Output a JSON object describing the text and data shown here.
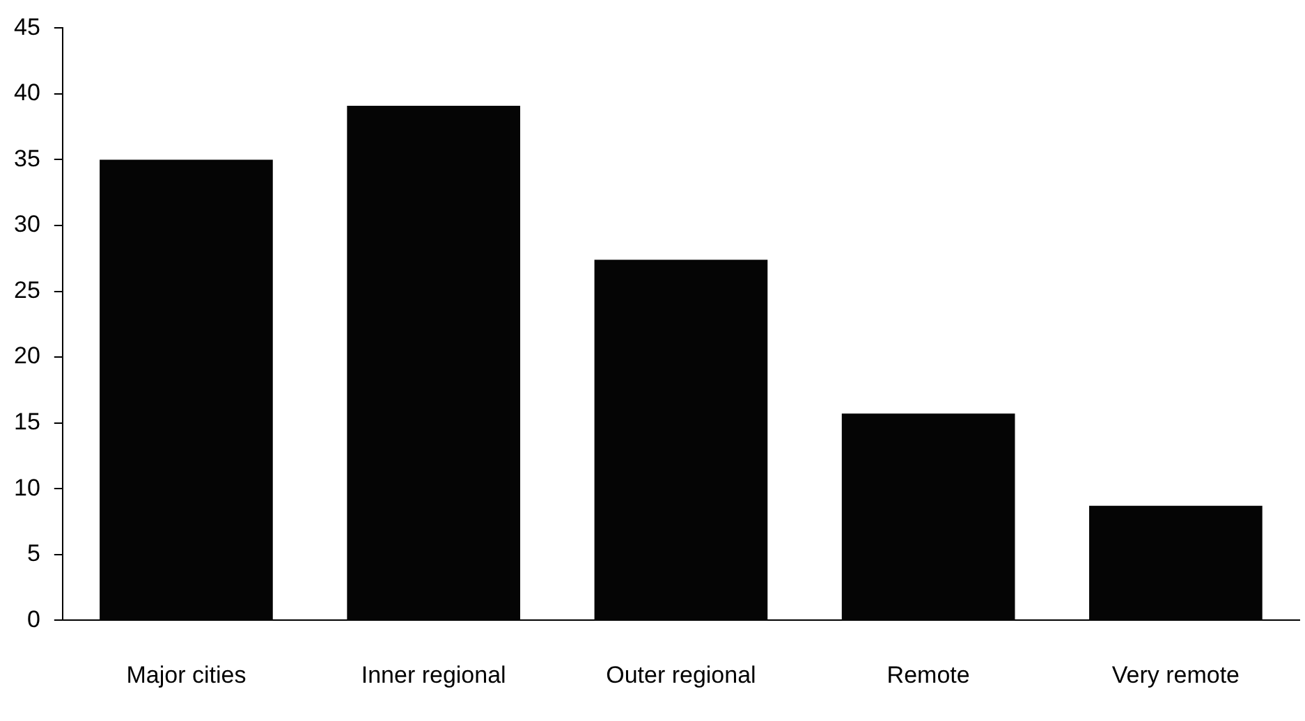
{
  "chart_data": {
    "type": "bar",
    "categories": [
      "Major cities",
      "Inner regional",
      "Outer regional",
      "Remote",
      "Very remote"
    ],
    "values": [
      35,
      39.1,
      27.4,
      15.7,
      8.7
    ],
    "color": "#050505",
    "ylim": [
      0,
      45
    ],
    "yticks": [
      0,
      5,
      10,
      15,
      20,
      25,
      30,
      35,
      40,
      45
    ],
    "grid": false,
    "legend": false
  }
}
